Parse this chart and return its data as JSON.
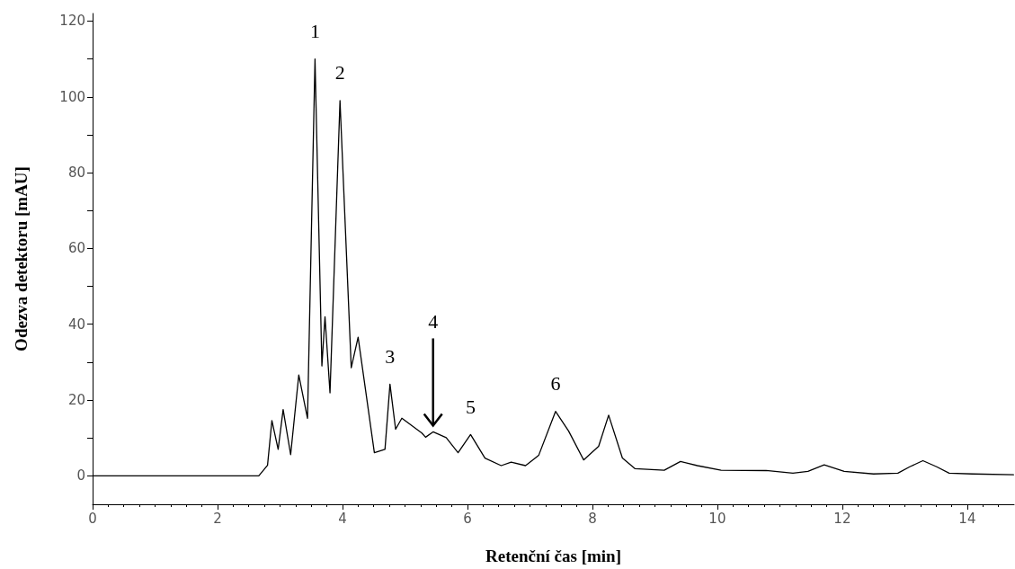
{
  "chart_data": {
    "type": "line",
    "xlabel": "Retenční čas [min]",
    "ylabel": "Odezva detektoru [mAU]",
    "x": [
      0,
      1.5,
      2.66,
      2.8,
      2.87,
      2.97,
      3.05,
      3.17,
      3.3,
      3.44,
      3.56,
      3.67,
      3.72,
      3.8,
      3.96,
      4.14,
      4.25,
      4.51,
      4.68,
      4.76,
      4.85,
      4.95,
      5.27,
      5.33,
      5.45,
      5.66,
      5.85,
      6.05,
      6.28,
      6.54,
      6.7,
      6.93,
      7.14,
      7.41,
      7.62,
      7.86,
      8.1,
      8.26,
      8.48,
      8.68,
      9.15,
      9.41,
      9.68,
      10.06,
      10.78,
      11.21,
      11.45,
      11.71,
      12.03,
      12.5,
      12.89,
      13.08,
      13.29,
      13.51,
      13.71,
      14.08,
      14.74
    ],
    "series": [
      {
        "color": "#000000",
        "values": [
          0,
          0,
          0,
          2.8,
          14.6,
          7,
          17.5,
          5.6,
          26.6,
          15.2,
          110,
          29,
          42,
          21.9,
          99,
          28.5,
          36.6,
          6.1,
          7,
          24.2,
          12.3,
          15.2,
          11.3,
          10.2,
          11.6,
          10.1,
          6.1,
          10.9,
          4.7,
          2.7,
          3.6,
          2.7,
          5.4,
          17,
          11.8,
          4.2,
          7.8,
          16,
          4.7,
          1.9,
          1.5,
          3.8,
          2.7,
          1.5,
          1.4,
          0.7,
          1.2,
          2.9,
          1.2,
          0.5,
          0.7,
          2.4,
          4,
          2.4,
          0.7,
          0.5,
          0.3
        ]
      }
    ],
    "xlim": [
      0,
      14.75
    ],
    "xticks": [
      0,
      2,
      4,
      6,
      8,
      10,
      12,
      14
    ],
    "ylim": [
      -7.5,
      122
    ],
    "yticks": [
      0,
      {
        "value": 10,
        "label": null
      },
      20,
      {
        "value": 30,
        "label": null
      },
      40,
      {
        "value": 50,
        "label": null
      },
      60,
      {
        "value": 70,
        "label": null
      },
      80,
      {
        "value": 90,
        "label": null
      },
      100,
      {
        "value": 110,
        "label": null
      },
      120
    ],
    "grid": false,
    "marker": "none",
    "line_style": "solid",
    "annotations": [
      {
        "text": "1",
        "x": 3.56,
        "y": 110
      },
      {
        "text": "2",
        "x": 3.96,
        "y": 99
      },
      {
        "text": "3",
        "x": 4.76,
        "y": 24.2
      },
      {
        "text": "4",
        "x": 5.45,
        "y": 11.6
      },
      {
        "text": "5",
        "x": 6.05,
        "y": 10.9
      },
      {
        "text": "6",
        "x": 7.41,
        "y": 17
      }
    ]
  }
}
